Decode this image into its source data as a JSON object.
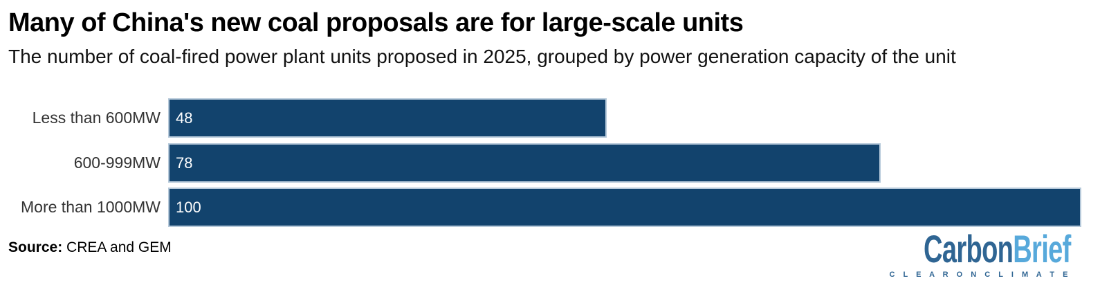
{
  "source": {
    "label": "Source:",
    "text": "CREA and GEM"
  },
  "logo": {
    "part1": "Carbon",
    "part2": "Brief",
    "tagline": "C L E A R   O N   C L I M A T E"
  },
  "colors": {
    "bar": "#12436d",
    "bar_border": "#b6c9da",
    "category_label": "#333333",
    "value_label": "#ffffff",
    "logo_dark_blue": "#2f6593",
    "logo_light_blue": "#57a9db",
    "background": "#ffffff"
  },
  "chart_data": {
    "type": "bar",
    "orientation": "horizontal",
    "title": "Many of China's new coal proposals are for large-scale units",
    "subtitle": "The number of coal-fired power plant units proposed in 2025, grouped by power generation capacity of the unit",
    "categories": [
      "Less than 600MW",
      "600-999MW",
      "More than 1000MW"
    ],
    "values": [
      48,
      78,
      100
    ],
    "xlim": [
      0,
      100
    ],
    "xlabel": "",
    "ylabel": "",
    "grid": false,
    "legend": false,
    "value_label_position": "inside-start"
  }
}
